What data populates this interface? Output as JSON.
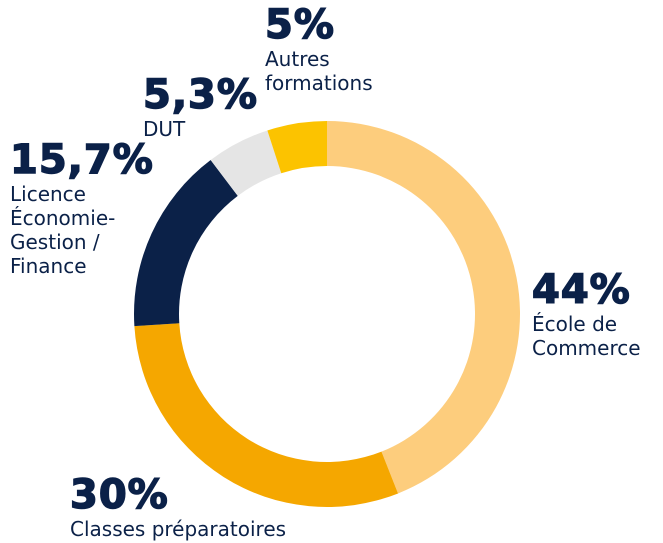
{
  "chart_data": {
    "type": "donut",
    "categories": [
      "École de Commerce",
      "Classes préparatoires",
      "Licence Économie-Gestion / Finance",
      "DUT",
      "Autres formations"
    ],
    "values": [
      44,
      30,
      15.7,
      5.3,
      5
    ],
    "value_labels": [
      "44%",
      "30%",
      "15,7%",
      "5,3%",
      "5%"
    ],
    "colors": [
      "#fdcd7d",
      "#f5a700",
      "#0b2148",
      "#e5e5e5",
      "#fcc300"
    ]
  }
}
